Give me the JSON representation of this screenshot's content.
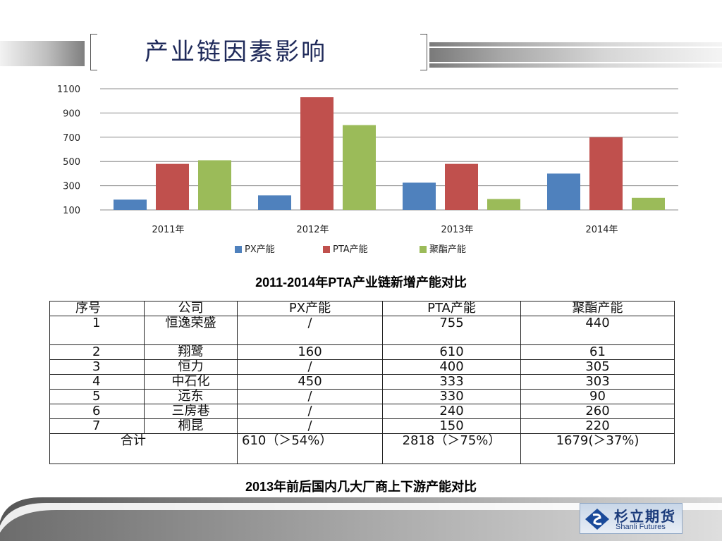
{
  "page": {
    "title": "产业链因素影响"
  },
  "chart_data": {
    "type": "bar",
    "categories": [
      "2011年",
      "2012年",
      "2013年",
      "2014年"
    ],
    "series": [
      {
        "name": "PX产能",
        "color": "#4f81bd",
        "values": [
          185,
          220,
          325,
          400
        ]
      },
      {
        "name": "PTA产能",
        "color": "#c0504d",
        "values": [
          480,
          1030,
          480,
          700
        ]
      },
      {
        "name": "聚酯产能",
        "color": "#9bbb59",
        "values": [
          510,
          800,
          190,
          200
        ]
      }
    ],
    "yticks": [
      "1100",
      "900",
      "700",
      "500",
      "300",
      "100"
    ],
    "ylim": [
      100,
      1100
    ],
    "grid": true,
    "legend_position": "bottom",
    "caption": "2011-2014年PTA产业链新增产能对比"
  },
  "table": {
    "headers": [
      "序号",
      "公司",
      "PX产能",
      "PTA产能",
      "聚酯产能"
    ],
    "rows": [
      [
        "1",
        "恒逸荣盛",
        "/",
        "755",
        "440"
      ],
      [
        "2",
        "翔鹭",
        "160",
        "610",
        "61"
      ],
      [
        "3",
        "恒力",
        "/",
        "400",
        "305"
      ],
      [
        "4",
        "中石化",
        "450",
        "333",
        "303"
      ],
      [
        "5",
        "远东",
        "/",
        "330",
        "90"
      ],
      [
        "6",
        "三房巷",
        "/",
        "240",
        "260"
      ],
      [
        "7",
        "桐昆",
        "/",
        "150",
        "220"
      ]
    ],
    "total": {
      "label": "合计",
      "px": "610（＞54%）",
      "pta": "2818（＞75%）",
      "polyester": "1679(＞37%)"
    },
    "caption": "2013年前后国内几大厂商上下游产能对比"
  },
  "logo": {
    "cn": "杉立期货",
    "en": "Shanli Futures"
  }
}
